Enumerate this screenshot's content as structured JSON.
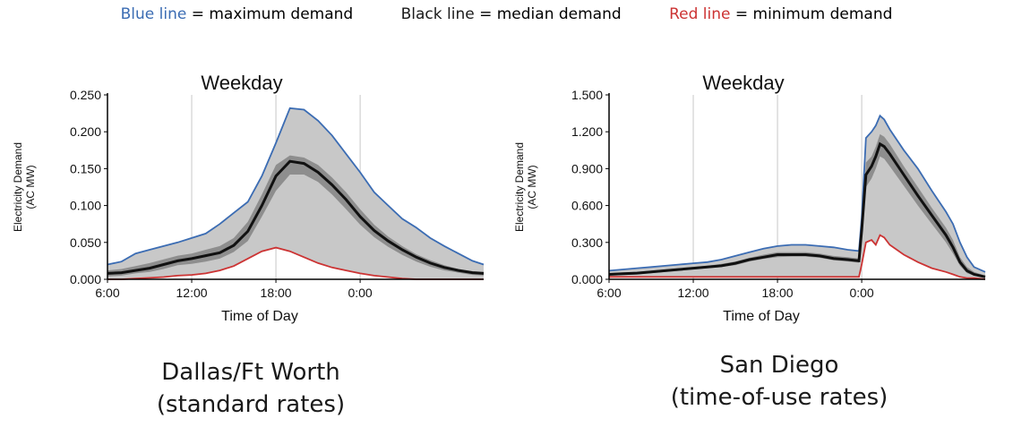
{
  "legend": {
    "items": [
      {
        "colored": "Blue line",
        "rest": " = maximum demand",
        "color": "#3b6cb3"
      },
      {
        "colored": "Black line",
        "rest": " = median demand",
        "color": "#1a1a1a"
      },
      {
        "colored": "Red line",
        "rest": " = minimum demand",
        "color": "#cc3333"
      }
    ]
  },
  "captions": {
    "left": [
      "Dallas/Ft Worth",
      "(standard rates)"
    ],
    "right": [
      "San Diego",
      "(time-of-use rates)"
    ]
  },
  "chart_data": [
    {
      "type": "area",
      "title": "Weekday",
      "xlabel": "Time of Day",
      "ylabel": "Electricity Demand (AC MW)",
      "xlim": [
        6,
        32.8
      ],
      "ylim": [
        0,
        0.25
      ],
      "xticks": [
        6,
        12,
        18,
        24
      ],
      "xtick_labels": [
        "6:00",
        "12:00",
        "18:00",
        "0:00"
      ],
      "yticks": [
        0,
        0.05,
        0.1,
        0.15,
        0.2,
        0.25
      ],
      "ytick_labels": [
        "0.000",
        "0.050",
        "0.100",
        "0.150",
        "0.200",
        "0.250"
      ],
      "vgrid": [
        12,
        18,
        24
      ],
      "colors": {
        "max": "#3b6cb3",
        "median": "#111111",
        "min": "#cc3333",
        "band": "#c8c8c8",
        "inner_band": "#8e8e8e"
      },
      "x": [
        6,
        7,
        8,
        9,
        10,
        11,
        12,
        13,
        14,
        15,
        16,
        17,
        18,
        19,
        20,
        21,
        22,
        23,
        24,
        25,
        26,
        27,
        28,
        29,
        30,
        31,
        32,
        32.8
      ],
      "series": [
        {
          "name": "maximum",
          "values": [
            0.02,
            0.024,
            0.035,
            0.04,
            0.045,
            0.05,
            0.056,
            0.062,
            0.075,
            0.09,
            0.105,
            0.14,
            0.185,
            0.232,
            0.23,
            0.215,
            0.195,
            0.17,
            0.145,
            0.118,
            0.1,
            0.082,
            0.07,
            0.056,
            0.045,
            0.035,
            0.025,
            0.02
          ]
        },
        {
          "name": "median",
          "values": [
            0.008,
            0.009,
            0.012,
            0.015,
            0.02,
            0.025,
            0.028,
            0.032,
            0.036,
            0.046,
            0.065,
            0.1,
            0.14,
            0.16,
            0.157,
            0.145,
            0.128,
            0.108,
            0.085,
            0.066,
            0.052,
            0.04,
            0.03,
            0.022,
            0.016,
            0.012,
            0.009,
            0.008
          ]
        },
        {
          "name": "minimum",
          "values": [
            0.0,
            0.0,
            0.001,
            0.002,
            0.003,
            0.005,
            0.006,
            0.008,
            0.012,
            0.018,
            0.028,
            0.038,
            0.043,
            0.038,
            0.03,
            0.022,
            0.016,
            0.012,
            0.008,
            0.005,
            0.003,
            0.001,
            0.0,
            0.0,
            0.0,
            0.0,
            0.0,
            0.0
          ]
        },
        {
          "name": "upper quartile",
          "values": [
            0.012,
            0.014,
            0.018,
            0.022,
            0.027,
            0.032,
            0.035,
            0.04,
            0.045,
            0.056,
            0.078,
            0.115,
            0.155,
            0.168,
            0.165,
            0.155,
            0.138,
            0.118,
            0.095,
            0.074,
            0.058,
            0.045,
            0.034,
            0.026,
            0.019,
            0.014,
            0.011,
            0.01
          ]
        },
        {
          "name": "lower quartile",
          "values": [
            0.004,
            0.005,
            0.008,
            0.01,
            0.014,
            0.019,
            0.021,
            0.024,
            0.028,
            0.037,
            0.052,
            0.085,
            0.12,
            0.142,
            0.142,
            0.132,
            0.115,
            0.095,
            0.074,
            0.057,
            0.044,
            0.033,
            0.024,
            0.017,
            0.012,
            0.009,
            0.006,
            0.005
          ]
        }
      ]
    },
    {
      "type": "area",
      "title": "Weekday",
      "xlabel": "Time of Day",
      "ylabel": "Electricity Demand (AC MW)",
      "xlim": [
        6,
        32.8
      ],
      "ylim": [
        0,
        1.5
      ],
      "xticks": [
        6,
        12,
        18,
        24
      ],
      "xtick_labels": [
        "6:00",
        "12:00",
        "18:00",
        "0:00"
      ],
      "yticks": [
        0,
        0.3,
        0.6,
        0.9,
        1.2,
        1.5
      ],
      "ytick_labels": [
        "0.000",
        "0.300",
        "0.600",
        "0.900",
        "1.200",
        "1.500"
      ],
      "vgrid": [
        12,
        18,
        24
      ],
      "colors": {
        "max": "#3b6cb3",
        "median": "#111111",
        "min": "#cc3333",
        "band": "#c8c8c8",
        "inner_band": "#8e8e8e"
      },
      "x": [
        6,
        7,
        8,
        9,
        10,
        11,
        12,
        13,
        14,
        15,
        16,
        17,
        18,
        19,
        20,
        21,
        22,
        23,
        23.8,
        24,
        24.3,
        24.7,
        25,
        25.3,
        25.6,
        26,
        27,
        28,
        29,
        30,
        30.5,
        31,
        31.5,
        32,
        32.8
      ],
      "series": [
        {
          "name": "maximum",
          "values": [
            0.07,
            0.08,
            0.09,
            0.1,
            0.11,
            0.12,
            0.13,
            0.14,
            0.16,
            0.19,
            0.22,
            0.25,
            0.27,
            0.28,
            0.28,
            0.27,
            0.26,
            0.24,
            0.23,
            0.5,
            1.15,
            1.2,
            1.25,
            1.33,
            1.3,
            1.22,
            1.05,
            0.9,
            0.72,
            0.55,
            0.45,
            0.3,
            0.18,
            0.1,
            0.06
          ]
        },
        {
          "name": "median",
          "values": [
            0.04,
            0.045,
            0.05,
            0.06,
            0.07,
            0.08,
            0.09,
            0.1,
            0.11,
            0.13,
            0.16,
            0.18,
            0.2,
            0.2,
            0.2,
            0.19,
            0.17,
            0.16,
            0.15,
            0.4,
            0.85,
            0.92,
            1.0,
            1.1,
            1.08,
            1.02,
            0.85,
            0.68,
            0.52,
            0.36,
            0.26,
            0.14,
            0.07,
            0.04,
            0.02
          ]
        },
        {
          "name": "minimum",
          "values": [
            0.02,
            0.02,
            0.02,
            0.02,
            0.02,
            0.02,
            0.02,
            0.02,
            0.02,
            0.02,
            0.02,
            0.02,
            0.02,
            0.02,
            0.02,
            0.02,
            0.02,
            0.02,
            0.02,
            0.12,
            0.3,
            0.32,
            0.28,
            0.36,
            0.34,
            0.28,
            0.2,
            0.14,
            0.09,
            0.06,
            0.04,
            0.02,
            0.01,
            0.01,
            0.0
          ]
        },
        {
          "name": "upper quartile",
          "values": [
            0.05,
            0.055,
            0.06,
            0.07,
            0.08,
            0.09,
            0.1,
            0.11,
            0.125,
            0.145,
            0.175,
            0.2,
            0.22,
            0.22,
            0.22,
            0.21,
            0.19,
            0.18,
            0.17,
            0.43,
            0.95,
            1.0,
            1.08,
            1.18,
            1.16,
            1.1,
            0.92,
            0.75,
            0.58,
            0.42,
            0.32,
            0.18,
            0.1,
            0.06,
            0.03
          ]
        },
        {
          "name": "lower quartile",
          "values": [
            0.03,
            0.035,
            0.04,
            0.05,
            0.06,
            0.07,
            0.08,
            0.09,
            0.1,
            0.115,
            0.145,
            0.165,
            0.18,
            0.185,
            0.185,
            0.175,
            0.155,
            0.145,
            0.135,
            0.36,
            0.75,
            0.82,
            0.9,
            1.0,
            0.98,
            0.92,
            0.76,
            0.6,
            0.45,
            0.3,
            0.21,
            0.11,
            0.05,
            0.03,
            0.015
          ]
        }
      ]
    }
  ]
}
